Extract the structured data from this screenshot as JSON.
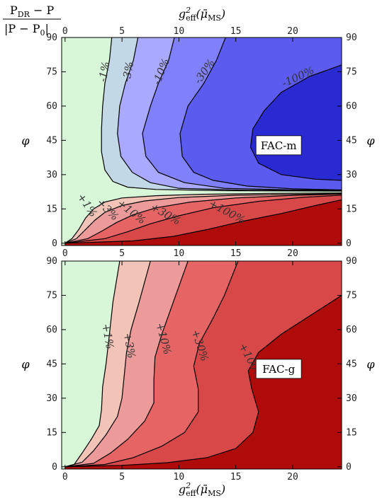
{
  "corner_label": {
    "numerator": "P",
    "numerator_sub": "DR",
    "numerator_rest": " − P",
    "denominator": "|P − P",
    "denominator_sub": "0",
    "denominator_end": "|"
  },
  "colors": {
    "contour_line": "#000000",
    "frame": "#000000"
  },
  "chart_data": [
    {
      "type": "contour",
      "title": "FAC-m",
      "xlabel": "g_eff^2(μ̄_MS)",
      "xlabel_parts": {
        "base": "g",
        "sup": "2",
        "sub": "eff",
        "arg": "(μ̄",
        "arg_sub": "MS",
        "close": ")"
      },
      "xlabel_position": "top",
      "ylabel": "φ",
      "xlim": [
        -0.3,
        24.3
      ],
      "ylim": [
        -1,
        90
      ],
      "xticks": [
        0,
        5,
        10,
        15,
        20
      ],
      "yticks": [
        0,
        15,
        30,
        45,
        60,
        75,
        90
      ],
      "regions": [
        {
          "label": "-1%",
          "color": "#c2d8e6"
        },
        {
          "label": "-3%",
          "color": "#a9a9ff"
        },
        {
          "label": "-10%",
          "color": "#8080fb"
        },
        {
          "label": "-30%",
          "color": "#5b5bf0"
        },
        {
          "label": "-100%",
          "color": "#2a2ad2"
        },
        {
          "label": "+1%",
          "color": "#f1c4b7"
        },
        {
          "label": "+3%",
          "color": "#ec9a9a"
        },
        {
          "label": "+10%",
          "color": "#e66464"
        },
        {
          "label": "+30%",
          "color": "#d84848"
        },
        {
          "label": "+100%",
          "color": "#b00b0b"
        }
      ],
      "background_color": "#d8f6d8",
      "contours": [
        {
          "label": "-1%",
          "points": [
            [
              4.1,
              90
            ],
            [
              3.9,
              80
            ],
            [
              3.5,
              70
            ],
            [
              3.3,
              60
            ],
            [
              3.2,
              50
            ],
            [
              3.2,
              40
            ],
            [
              3.5,
              32
            ],
            [
              4.2,
              27
            ],
            [
              5.5,
              24.5
            ],
            [
              8,
              23.5
            ],
            [
              14,
              23
            ],
            [
              24.3,
              22.8
            ]
          ]
        },
        {
          "label": "-3%",
          "points": [
            [
              6.4,
              90
            ],
            [
              6,
              80
            ],
            [
              5.3,
              70
            ],
            [
              4.8,
              60
            ],
            [
              4.6,
              48
            ],
            [
              4.9,
              38
            ],
            [
              5.9,
              31
            ],
            [
              7.5,
              26.5
            ],
            [
              10,
              24
            ],
            [
              16,
              23.2
            ],
            [
              24.3,
              23
            ]
          ]
        },
        {
          "label": "-10%",
          "points": [
            [
              9.6,
              90
            ],
            [
              9.1,
              80
            ],
            [
              8.2,
              70
            ],
            [
              7.5,
              60
            ],
            [
              6.8,
              48
            ],
            [
              7.1,
              38
            ],
            [
              8.2,
              31
            ],
            [
              10.5,
              26.5
            ],
            [
              14,
              24
            ],
            [
              20,
              23.3
            ],
            [
              24.3,
              23.1
            ]
          ]
        },
        {
          "label": "-30%",
          "points": [
            [
              14.1,
              90
            ],
            [
              13.3,
              80
            ],
            [
              12.2,
              70
            ],
            [
              10.8,
              60
            ],
            [
              10.1,
              48
            ],
            [
              10.3,
              38
            ],
            [
              11.3,
              31
            ],
            [
              13,
              27.5
            ],
            [
              16,
              25
            ],
            [
              20,
              23.8
            ],
            [
              24.3,
              23.3
            ]
          ]
        },
        {
          "label": "-100%",
          "points": [
            [
              24.3,
              78
            ],
            [
              21.5,
              73
            ],
            [
              19,
              66
            ],
            [
              17.5,
              58
            ],
            [
              16.5,
              50
            ],
            [
              16.3,
              42
            ],
            [
              17,
              35
            ],
            [
              19,
              30
            ],
            [
              22,
              28
            ],
            [
              24.3,
              27.5
            ]
          ]
        },
        {
          "label": "+1%",
          "points": [
            [
              0,
              0
            ],
            [
              0.6,
              2
            ],
            [
              1.2,
              6
            ],
            [
              1.8,
              11
            ],
            [
              2.5,
              15
            ],
            [
              3.5,
              18
            ],
            [
              5,
              19.8
            ],
            [
              8,
              20.8
            ],
            [
              12,
              21.4
            ],
            [
              18,
              21.8
            ],
            [
              24.3,
              22
            ]
          ]
        },
        {
          "label": "+3%",
          "points": [
            [
              0,
              0
            ],
            [
              1,
              2
            ],
            [
              1.8,
              6
            ],
            [
              2.6,
              10
            ],
            [
              3.5,
              13.5
            ],
            [
              5,
              16.5
            ],
            [
              7,
              18.5
            ],
            [
              10,
              20
            ],
            [
              15,
              21
            ],
            [
              24.3,
              21.7
            ]
          ]
        },
        {
          "label": "+10%",
          "points": [
            [
              0,
              0
            ],
            [
              2,
              2
            ],
            [
              3.3,
              5.5
            ],
            [
              4.5,
              9
            ],
            [
              6,
              12.5
            ],
            [
              8,
              15.5
            ],
            [
              11,
              18
            ],
            [
              15,
              19.8
            ],
            [
              20,
              20.9
            ],
            [
              24.3,
              21.5
            ]
          ]
        },
        {
          "label": "+30%",
          "points": [
            [
              0,
              0
            ],
            [
              3.5,
              2
            ],
            [
              5.5,
              5
            ],
            [
              7.5,
              8.5
            ],
            [
              10,
              12
            ],
            [
              13,
              15.5
            ],
            [
              17,
              18.3
            ],
            [
              21,
              20.1
            ],
            [
              24.3,
              21
            ]
          ]
        },
        {
          "label": "+100%",
          "points": [
            [
              0,
              0
            ],
            [
              6,
              1
            ],
            [
              9.5,
              3
            ],
            [
              12.5,
              6
            ],
            [
              15.5,
              9.5
            ],
            [
              19,
              13
            ],
            [
              22,
              16.5
            ],
            [
              24.3,
              19
            ]
          ]
        }
      ],
      "contour_labels": [
        {
          "text": "-1%",
          "x": 3.5,
          "y": 75,
          "angle": 80
        },
        {
          "text": "-3%",
          "x": 5.6,
          "y": 75,
          "angle": 80
        },
        {
          "text": "-10%",
          "x": 8.5,
          "y": 75,
          "angle": 68
        },
        {
          "text": "-30%",
          "x": 12.3,
          "y": 75,
          "angle": 55
        },
        {
          "text": "-100%",
          "x": 20.5,
          "y": 72.5,
          "angle": 25
        },
        {
          "text": "+1%",
          "x": 1.9,
          "y": 16.5,
          "angle": -55
        },
        {
          "text": "+3%",
          "x": 3.7,
          "y": 14.5,
          "angle": -45
        },
        {
          "text": "+10%",
          "x": 5.8,
          "y": 13.5,
          "angle": -38
        },
        {
          "text": "+30%",
          "x": 8.8,
          "y": 12.5,
          "angle": -30
        },
        {
          "text": "+100%",
          "x": 14.2,
          "y": 13.5,
          "angle": -28
        }
      ]
    },
    {
      "type": "contour",
      "title": "FAC-g",
      "xlabel": "g_eff^2(μ̄_MS)",
      "xlabel_parts": {
        "base": "g",
        "sup": "2",
        "sub": "eff",
        "arg": "(μ̄",
        "arg_sub": "MS",
        "close": ")"
      },
      "xlabel_position": "bottom",
      "ylabel": "φ",
      "xlim": [
        -0.3,
        24.3
      ],
      "ylim": [
        -1,
        90
      ],
      "xticks": [
        0,
        5,
        10,
        15,
        20
      ],
      "yticks": [
        0,
        15,
        30,
        45,
        60,
        75,
        90
      ],
      "regions": [
        {
          "label": "+1%",
          "color": "#f1c4b7"
        },
        {
          "label": "+3%",
          "color": "#ec9a9a"
        },
        {
          "label": "+10%",
          "color": "#e66464"
        },
        {
          "label": "+30%",
          "color": "#d84848"
        },
        {
          "label": "+100%",
          "color": "#b00b0b"
        }
      ],
      "background_color": "#d8f6d8",
      "contours": [
        {
          "label": "+1%",
          "points": [
            [
              0,
              0
            ],
            [
              0.8,
              1
            ],
            [
              1.5,
              6
            ],
            [
              2.3,
              12
            ],
            [
              3,
              18
            ],
            [
              3.2,
              25
            ],
            [
              3.3,
              35
            ],
            [
              3.6,
              45
            ],
            [
              3.9,
              58
            ],
            [
              4.2,
              72
            ],
            [
              4.8,
              90
            ]
          ]
        },
        {
          "label": "+3%",
          "points": [
            [
              0,
              0
            ],
            [
              1.5,
              2
            ],
            [
              2.5,
              7
            ],
            [
              3.6,
              14
            ],
            [
              4.6,
              22
            ],
            [
              5,
              30
            ],
            [
              5.2,
              40
            ],
            [
              5.4,
              50
            ],
            [
              5.8,
              60
            ],
            [
              6.5,
              72
            ],
            [
              7.5,
              90
            ]
          ]
        },
        {
          "label": "+10%",
          "points": [
            [
              0,
              0
            ],
            [
              2.5,
              1.5
            ],
            [
              4,
              6
            ],
            [
              5.5,
              12
            ],
            [
              7,
              20
            ],
            [
              7.8,
              28
            ],
            [
              7.8,
              38
            ],
            [
              7.9,
              48
            ],
            [
              8.5,
              58
            ],
            [
              9.5,
              72
            ],
            [
              10.8,
              90
            ]
          ]
        },
        {
          "label": "+30%",
          "points": [
            [
              0,
              0
            ],
            [
              3.5,
              1
            ],
            [
              6,
              4
            ],
            [
              8.5,
              9
            ],
            [
              10.5,
              15
            ],
            [
              11.7,
              24
            ],
            [
              11.7,
              34
            ],
            [
              11.3,
              44
            ],
            [
              11.8,
              54
            ],
            [
              13,
              65
            ],
            [
              14,
              75
            ],
            [
              15.2,
              90
            ]
          ]
        },
        {
          "label": "+100%",
          "points": [
            [
              0,
              0
            ],
            [
              5,
              0.6
            ],
            [
              9,
              1.8
            ],
            [
              12.5,
              4
            ],
            [
              15,
              8
            ],
            [
              16.5,
              15
            ],
            [
              17,
              24
            ],
            [
              16.4,
              34
            ],
            [
              16.1,
              42
            ],
            [
              17,
              50
            ],
            [
              19,
              58
            ],
            [
              21.5,
              66
            ],
            [
              24.3,
              75
            ]
          ]
        }
      ],
      "contour_labels": [
        {
          "text": "+1%",
          "x": 3.7,
          "y": 57,
          "angle": -80
        },
        {
          "text": "+3%",
          "x": 5.6,
          "y": 53,
          "angle": -80
        },
        {
          "text": "+10%",
          "x": 8.6,
          "y": 56,
          "angle": -75
        },
        {
          "text": "+30%",
          "x": 11.8,
          "y": 53,
          "angle": -72
        },
        {
          "text": "+100%",
          "x": 16.3,
          "y": 46,
          "angle": -62
        }
      ]
    }
  ]
}
